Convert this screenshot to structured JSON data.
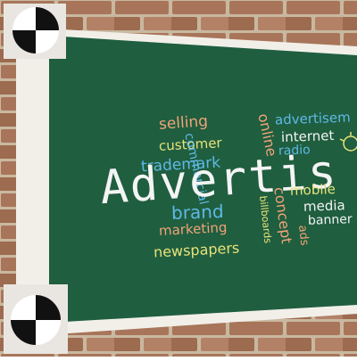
{
  "photo": {
    "title_word": "Advertis",
    "words": {
      "selling": "selling",
      "customer": "customer",
      "trademark": "trademark",
      "brand": "brand",
      "marketing": "marketing",
      "newspapers": "newspapers",
      "commercial": "commercial",
      "online": "online",
      "advertisement": "advertisem",
      "internet": "internet",
      "radio": "radio",
      "mobile": "mobile",
      "media": "media",
      "banner": "banner",
      "concept": "concept",
      "ads": "ads",
      "billboards": "billboards"
    },
    "colors": {
      "board": "#1f5e3f",
      "brick": "#a8755a",
      "mortar": "#c9b8a0",
      "chalk_white": "#f4f4f4",
      "chalk_blue": "#5fb9e6",
      "chalk_orange": "#f0a478",
      "chalk_yellow": "#e9e37a"
    }
  }
}
